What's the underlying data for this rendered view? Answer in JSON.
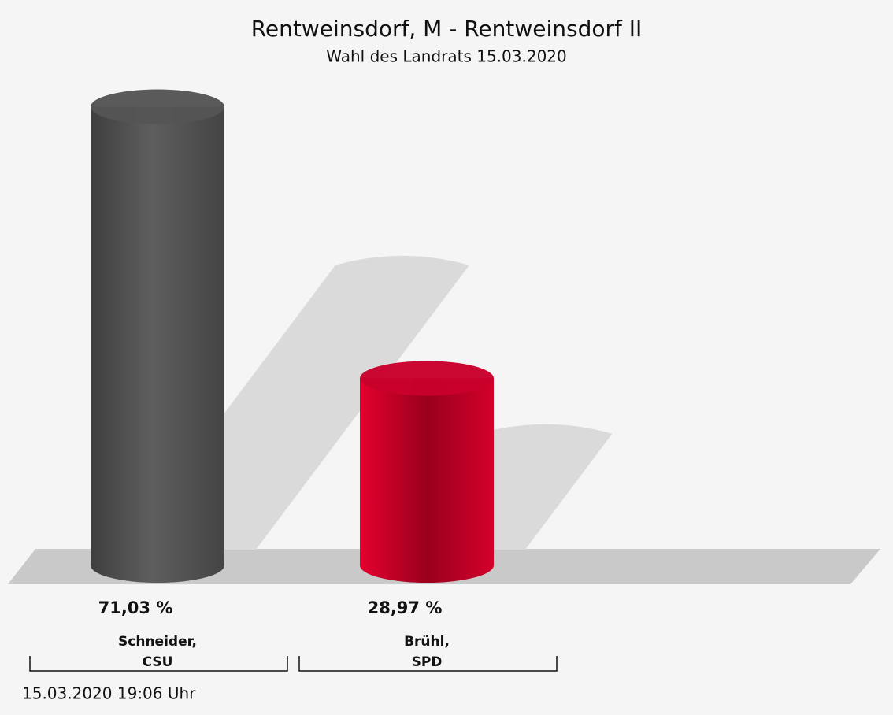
{
  "chart_data": {
    "type": "cylinder-bar",
    "title": "Rentweinsdorf, M - Rentweinsdorf II",
    "subtitle": "Wahl des Landrats 15.03.2020",
    "categories": [
      "Schneider,\nCSU",
      "Brühl,\nSPD"
    ],
    "values": [
      71.03,
      28.97
    ],
    "value_labels": [
      "71,03 %",
      "28,97 %"
    ],
    "colors": [
      "#555555",
      "#c8002a"
    ],
    "footnote": "15.03.2020 19:06 Uhr"
  }
}
